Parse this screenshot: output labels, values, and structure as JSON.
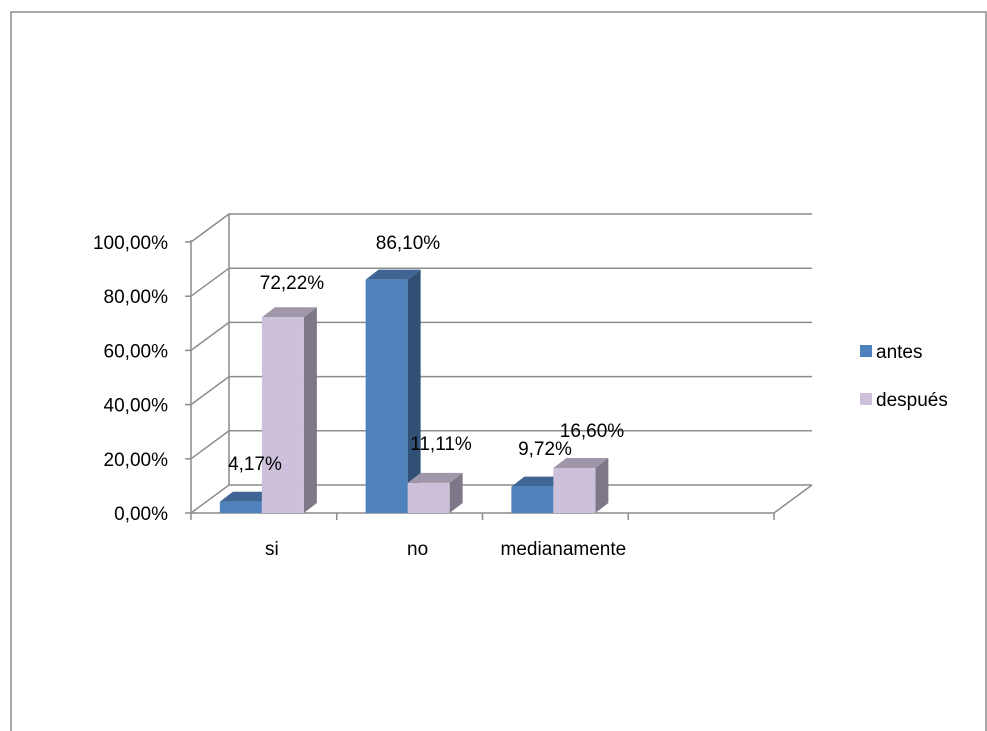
{
  "chart_data": {
    "type": "bar",
    "categories": [
      "si",
      "no",
      "medianamente",
      ""
    ],
    "series": [
      {
        "name": "antes",
        "values": [
          4.17,
          86.1,
          9.72,
          null
        ],
        "labels": [
          "4,17%",
          "86,10%",
          "9,72%",
          ""
        ],
        "color": "#4F81BD"
      },
      {
        "name": "después",
        "values": [
          72.22,
          11.11,
          16.6,
          null
        ],
        "labels": [
          "72,22%",
          "11,11%",
          "16,60%",
          ""
        ],
        "color": "#CCC0DA"
      }
    ],
    "y_ticks": [
      "0,00%",
      "20,00%",
      "40,00%",
      "60,00%",
      "80,00%",
      "100,00%"
    ],
    "ylim": [
      0,
      100
    ],
    "grid": true,
    "legend_position": "right",
    "three_d": true
  }
}
